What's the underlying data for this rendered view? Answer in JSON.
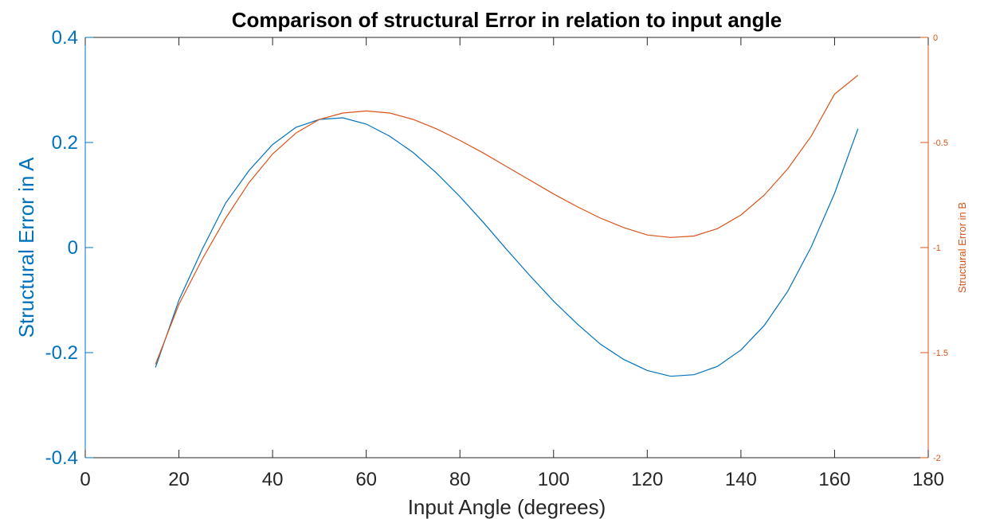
{
  "chart_data": {
    "type": "line",
    "title": "Comparison of structural Error in relation to input angle",
    "xlabel": "Input Angle (degrees)",
    "ylabel_left": "Structural Error in A",
    "ylabel_right": "Structural Error in B",
    "xlim": [
      0,
      180
    ],
    "ylim_left": [
      -0.4,
      0.4
    ],
    "ylim_right": [
      -2,
      0
    ],
    "x_ticks": [
      "0",
      "20",
      "40",
      "60",
      "80",
      "100",
      "120",
      "140",
      "160",
      "180"
    ],
    "y_ticks_left": [
      "-0.4",
      "-0.2",
      "0",
      "0.2",
      "0.4"
    ],
    "y_ticks_right": [
      "-2",
      "-1.5",
      "-1",
      "-0.5",
      "0"
    ],
    "grid": false,
    "colors": {
      "left_axis": "#0072bd",
      "right_axis": "#d95319",
      "frame": "#262626"
    },
    "x": [
      15,
      20,
      25,
      30,
      35,
      40,
      45,
      50,
      55,
      60,
      65,
      70,
      75,
      80,
      85,
      90,
      95,
      100,
      105,
      110,
      115,
      120,
      125,
      130,
      135,
      140,
      145,
      150,
      155,
      160,
      165
    ],
    "series": [
      {
        "axis": "left",
        "color": "#0072bd",
        "values": [
          -0.228,
          -0.1,
          -0.003,
          0.085,
          0.147,
          0.196,
          0.229,
          0.244,
          0.247,
          0.235,
          0.212,
          0.181,
          0.142,
          0.097,
          0.048,
          -0.004,
          -0.054,
          -0.102,
          -0.145,
          -0.184,
          -0.213,
          -0.234,
          -0.245,
          -0.242,
          -0.226,
          -0.195,
          -0.148,
          -0.083,
          0.001,
          0.103,
          0.226
        ]
      },
      {
        "axis": "right",
        "color": "#d95319",
        "values": [
          -1.555,
          -1.27,
          -1.055,
          -0.86,
          -0.69,
          -0.555,
          -0.455,
          -0.39,
          -0.36,
          -0.35,
          -0.36,
          -0.39,
          -0.435,
          -0.49,
          -0.55,
          -0.615,
          -0.68,
          -0.745,
          -0.805,
          -0.86,
          -0.905,
          -0.94,
          -0.952,
          -0.945,
          -0.91,
          -0.845,
          -0.75,
          -0.625,
          -0.47,
          -0.27,
          -0.18
        ]
      }
    ]
  }
}
